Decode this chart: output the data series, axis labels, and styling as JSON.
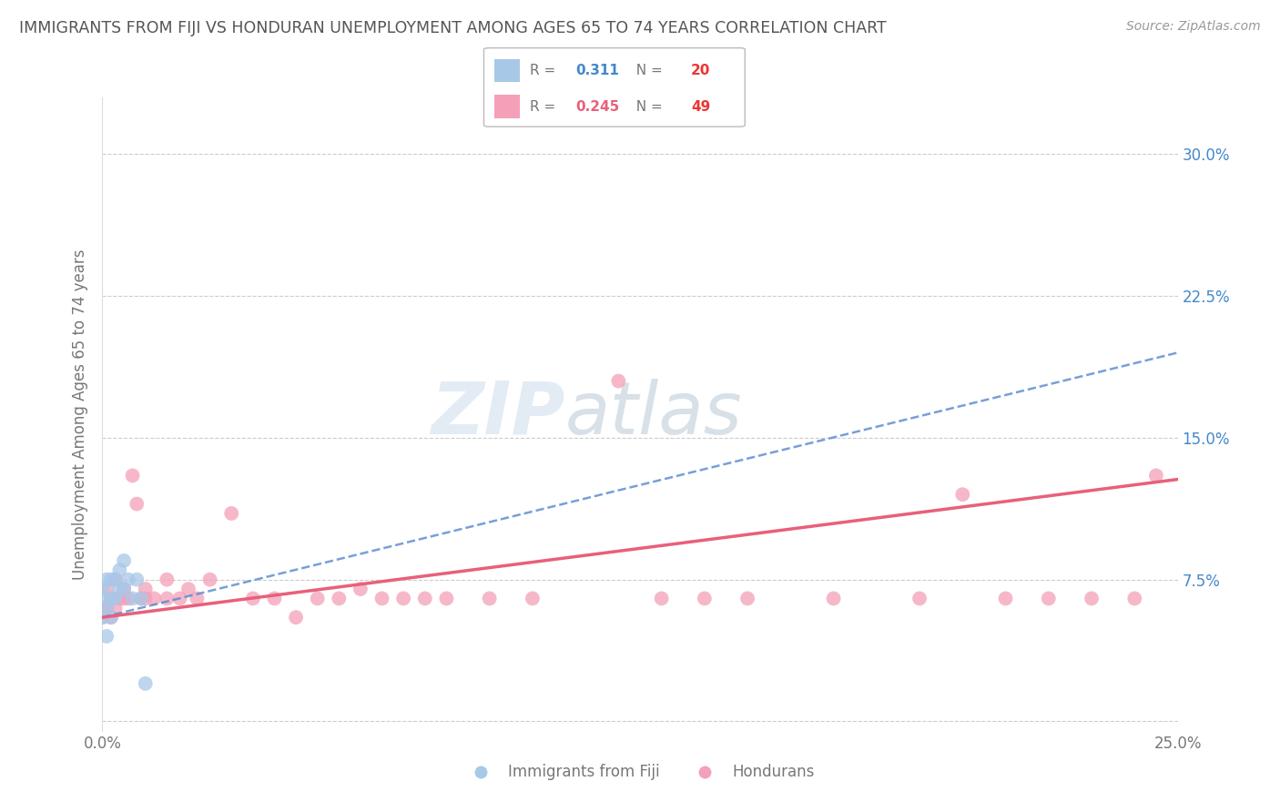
{
  "title": "IMMIGRANTS FROM FIJI VS HONDURAN UNEMPLOYMENT AMONG AGES 65 TO 74 YEARS CORRELATION CHART",
  "source": "Source: ZipAtlas.com",
  "ylabel": "Unemployment Among Ages 65 to 74 years",
  "xlim": [
    0.0,
    0.25
  ],
  "ylim": [
    -0.005,
    0.33
  ],
  "xticks": [
    0.0,
    0.05,
    0.1,
    0.15,
    0.2,
    0.25
  ],
  "xticklabels": [
    "0.0%",
    "",
    "",
    "",
    "",
    "25.0%"
  ],
  "yticks": [
    0.0,
    0.075,
    0.15,
    0.225,
    0.3
  ],
  "yticklabels": [
    "",
    "7.5%",
    "15.0%",
    "22.5%",
    "30.0%"
  ],
  "fiji_R": 0.311,
  "fiji_N": 20,
  "honduran_R": 0.245,
  "honduran_N": 49,
  "fiji_color": "#a8c8e8",
  "honduran_color": "#f4a0b8",
  "fiji_line_color": "#5588cc",
  "honduran_line_color": "#e8607a",
  "fiji_scatter_x": [
    0.0,
    0.0,
    0.0,
    0.001,
    0.001,
    0.001,
    0.002,
    0.002,
    0.002,
    0.003,
    0.003,
    0.004,
    0.004,
    0.005,
    0.005,
    0.006,
    0.007,
    0.008,
    0.009,
    0.01
  ],
  "fiji_scatter_y": [
    0.055,
    0.065,
    0.07,
    0.045,
    0.06,
    0.075,
    0.055,
    0.065,
    0.075,
    0.065,
    0.075,
    0.07,
    0.08,
    0.07,
    0.085,
    0.075,
    0.065,
    0.075,
    0.065,
    0.02
  ],
  "honduran_scatter_x": [
    0.0,
    0.0,
    0.001,
    0.001,
    0.002,
    0.002,
    0.003,
    0.003,
    0.004,
    0.005,
    0.005,
    0.006,
    0.007,
    0.008,
    0.009,
    0.01,
    0.01,
    0.012,
    0.015,
    0.015,
    0.018,
    0.02,
    0.022,
    0.025,
    0.03,
    0.035,
    0.04,
    0.045,
    0.05,
    0.055,
    0.06,
    0.065,
    0.07,
    0.075,
    0.08,
    0.09,
    0.1,
    0.12,
    0.13,
    0.14,
    0.15,
    0.17,
    0.19,
    0.2,
    0.21,
    0.22,
    0.23,
    0.24,
    0.245
  ],
  "honduran_scatter_y": [
    0.055,
    0.06,
    0.06,
    0.07,
    0.065,
    0.055,
    0.06,
    0.075,
    0.065,
    0.065,
    0.07,
    0.065,
    0.13,
    0.115,
    0.065,
    0.065,
    0.07,
    0.065,
    0.065,
    0.075,
    0.065,
    0.07,
    0.065,
    0.075,
    0.11,
    0.065,
    0.065,
    0.055,
    0.065,
    0.065,
    0.07,
    0.065,
    0.065,
    0.065,
    0.065,
    0.065,
    0.065,
    0.18,
    0.065,
    0.065,
    0.065,
    0.065,
    0.065,
    0.12,
    0.065,
    0.065,
    0.065,
    0.065,
    0.13
  ],
  "fiji_line_x0": 0.0,
  "fiji_line_y0": 0.055,
  "fiji_line_x1": 0.25,
  "fiji_line_y1": 0.195,
  "honduran_line_x0": 0.0,
  "honduran_line_y0": 0.055,
  "honduran_line_x1": 0.25,
  "honduran_line_y1": 0.128,
  "watermark_zip": "ZIP",
  "watermark_atlas": "atlas",
  "legend_fiji_label": "Immigrants from Fiji",
  "legend_honduran_label": "Hondurans",
  "grid_color": "#cccccc",
  "title_color": "#555555",
  "axis_label_color": "#777777",
  "tick_color": "#777777",
  "tick_label_color_right": "#4488cc",
  "legend_R_text_color": "#777777",
  "legend_R_value_fiji_color": "#4488cc",
  "legend_R_value_honduran_color": "#e8607a",
  "legend_N_value_color": "#ee3333"
}
